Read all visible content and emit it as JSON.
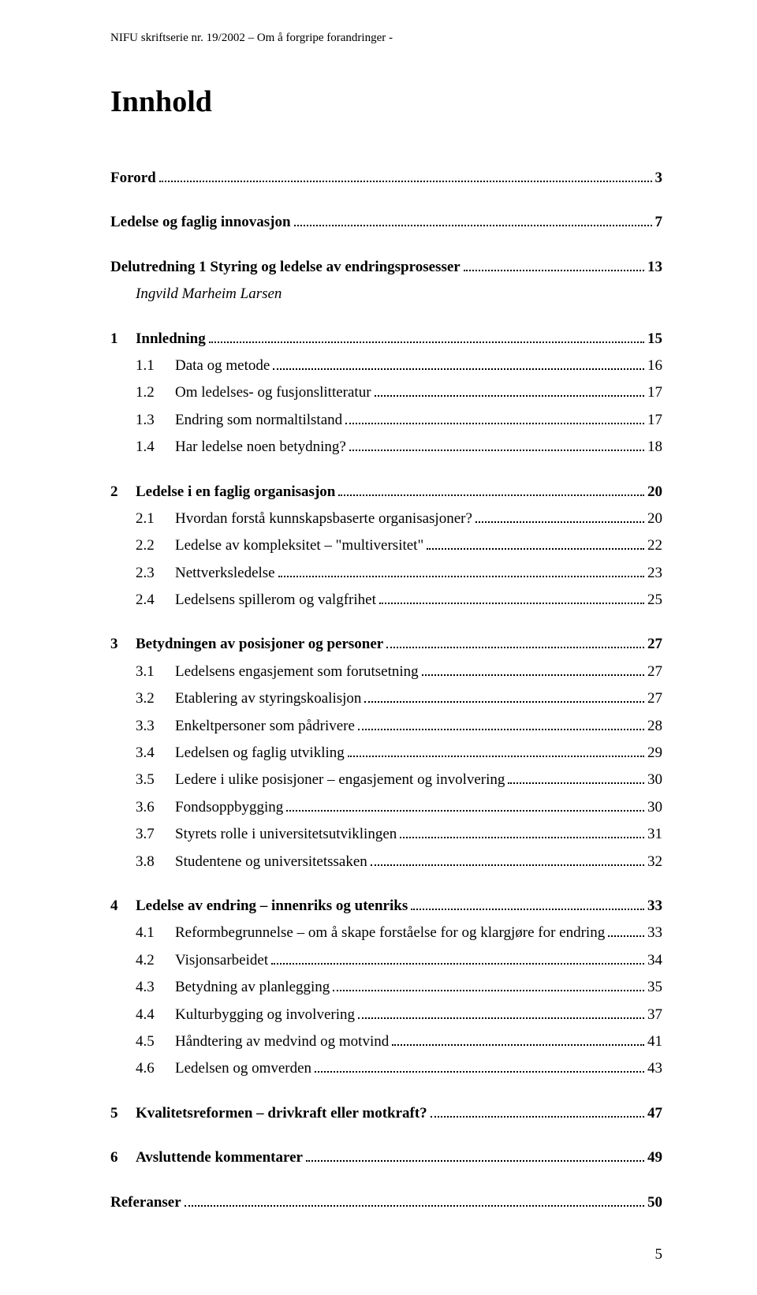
{
  "header": "NIFU skriftserie nr. 19/2002 – Om å forgripe forandringer -",
  "title": "Innhold",
  "pageNumber": "5",
  "toc": [
    {
      "type": "line",
      "style": "bold",
      "num": "",
      "label": "Forord",
      "page": "3"
    },
    {
      "type": "gap"
    },
    {
      "type": "line",
      "style": "bold",
      "num": "",
      "label": "Ledelse og faglig innovasjon",
      "page": "7"
    },
    {
      "type": "gap"
    },
    {
      "type": "line",
      "style": "bold",
      "num": "",
      "label": "Delutredning 1  Styring og ledelse av endringsprosesser",
      "page": "13"
    },
    {
      "type": "line",
      "style": "italic",
      "num": "",
      "label": "Ingvild Marheim Larsen",
      "page": "",
      "noLeader": true,
      "indent": true
    },
    {
      "type": "gap"
    },
    {
      "type": "line",
      "style": "bold",
      "num": "1",
      "label": "Innledning",
      "page": "15",
      "level": 1
    },
    {
      "type": "line",
      "style": "",
      "num": "1.1",
      "label": "Data og metode",
      "page": "16",
      "level": 2
    },
    {
      "type": "line",
      "style": "",
      "num": "1.2",
      "label": "Om ledelses- og fusjonslitteratur",
      "page": "17",
      "level": 2
    },
    {
      "type": "line",
      "style": "",
      "num": "1.3",
      "label": "Endring som normaltilstand",
      "page": "17",
      "level": 2
    },
    {
      "type": "line",
      "style": "",
      "num": "1.4",
      "label": "Har ledelse noen betydning?",
      "page": "18",
      "level": 2
    },
    {
      "type": "gap"
    },
    {
      "type": "line",
      "style": "bold",
      "num": "2",
      "label": "Ledelse i en faglig organisasjon",
      "page": "20",
      "level": 1
    },
    {
      "type": "line",
      "style": "",
      "num": "2.1",
      "label": "Hvordan forstå kunnskapsbaserte organisasjoner?",
      "page": "20",
      "level": 2
    },
    {
      "type": "line",
      "style": "",
      "num": "2.2",
      "label": "Ledelse av kompleksitet – \"multiversitet\"",
      "page": "22",
      "level": 2
    },
    {
      "type": "line",
      "style": "",
      "num": "2.3",
      "label": "Nettverksledelse",
      "page": "23",
      "level": 2
    },
    {
      "type": "line",
      "style": "",
      "num": "2.4",
      "label": "Ledelsens spillerom og valgfrihet",
      "page": "25",
      "level": 2
    },
    {
      "type": "gap"
    },
    {
      "type": "line",
      "style": "bold",
      "num": "3",
      "label": "Betydningen av posisjoner og personer",
      "page": "27",
      "level": 1
    },
    {
      "type": "line",
      "style": "",
      "num": "3.1",
      "label": "Ledelsens engasjement som forutsetning",
      "page": "27",
      "level": 2
    },
    {
      "type": "line",
      "style": "",
      "num": "3.2",
      "label": "Etablering av styringskoalisjon",
      "page": "27",
      "level": 2
    },
    {
      "type": "line",
      "style": "",
      "num": "3.3",
      "label": "Enkeltpersoner som pådrivere",
      "page": "28",
      "level": 2
    },
    {
      "type": "line",
      "style": "",
      "num": "3.4",
      "label": "Ledelsen og faglig utvikling",
      "page": "29",
      "level": 2
    },
    {
      "type": "line",
      "style": "",
      "num": "3.5",
      "label": "Ledere i ulike posisjoner – engasjement og involvering",
      "page": "30",
      "level": 2
    },
    {
      "type": "line",
      "style": "",
      "num": "3.6",
      "label": "Fondsoppbygging",
      "page": "30",
      "level": 2
    },
    {
      "type": "line",
      "style": "",
      "num": "3.7",
      "label": "Styrets rolle i universitetsutviklingen",
      "page": "31",
      "level": 2
    },
    {
      "type": "line",
      "style": "",
      "num": "3.8",
      "label": "Studentene og universitetssaken",
      "page": "32",
      "level": 2
    },
    {
      "type": "gap"
    },
    {
      "type": "line",
      "style": "bold",
      "num": "4",
      "label": "Ledelse av endring – innenriks og utenriks",
      "page": "33",
      "level": 1
    },
    {
      "type": "line",
      "style": "",
      "num": "4.1",
      "label": "Reformbegrunnelse – om å skape forståelse for og klargjøre for endring",
      "page": "33",
      "level": 2
    },
    {
      "type": "line",
      "style": "",
      "num": "4.2",
      "label": "Visjonsarbeidet",
      "page": "34",
      "level": 2
    },
    {
      "type": "line",
      "style": "",
      "num": "4.3",
      "label": "Betydning av planlegging",
      "page": "35",
      "level": 2
    },
    {
      "type": "line",
      "style": "",
      "num": "4.4",
      "label": "Kulturbygging og involvering",
      "page": "37",
      "level": 2
    },
    {
      "type": "line",
      "style": "",
      "num": "4.5",
      "label": "Håndtering av medvind og motvind",
      "page": "41",
      "level": 2
    },
    {
      "type": "line",
      "style": "",
      "num": "4.6",
      "label": "Ledelsen og omverden",
      "page": "43",
      "level": 2
    },
    {
      "type": "gap"
    },
    {
      "type": "line",
      "style": "bold",
      "num": "5",
      "label": "Kvalitetsreformen – drivkraft eller motkraft?",
      "page": "47",
      "level": 1
    },
    {
      "type": "gap"
    },
    {
      "type": "line",
      "style": "bold",
      "num": "6",
      "label": "Avsluttende kommentarer",
      "page": "49",
      "level": 1
    },
    {
      "type": "gap"
    },
    {
      "type": "line",
      "style": "bold",
      "num": "",
      "label": "Referanser",
      "page": "50"
    }
  ]
}
